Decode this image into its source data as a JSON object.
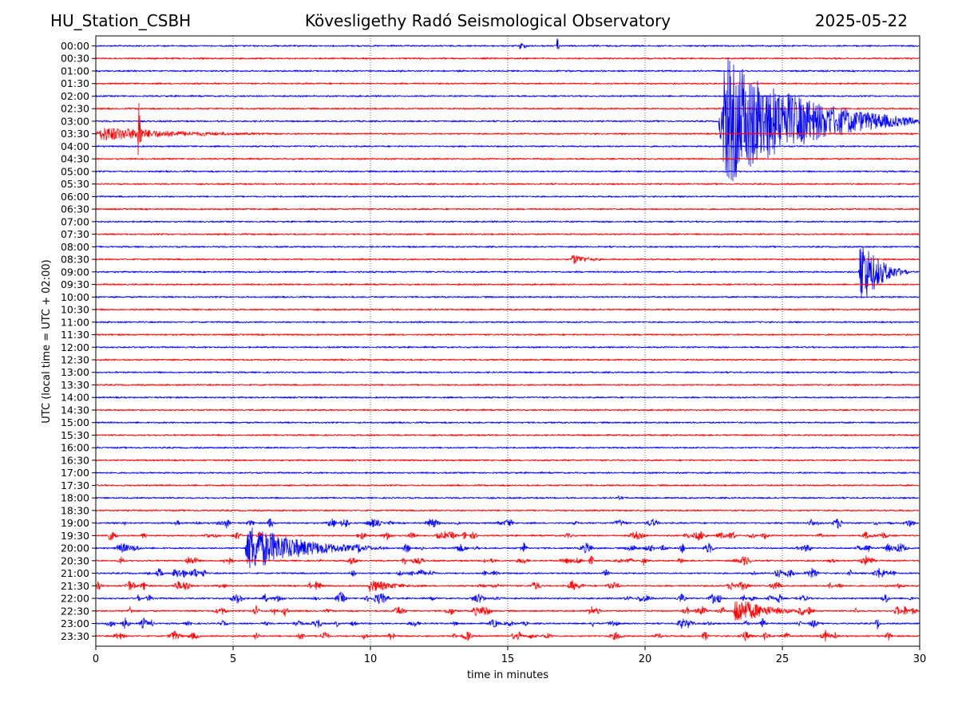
{
  "header": {
    "station": "HU_Station_CSBH",
    "observatory": "Kövesligethy Radó Seismological Observatory",
    "date": "2025-05-22"
  },
  "chart_data": {
    "type": "line",
    "subtype": "helicorder",
    "xlabel": "time in minutes",
    "ylabel": "UTC (local time = UTC + 02:00)",
    "xlim": [
      0,
      30
    ],
    "x_ticks": [
      0,
      5,
      10,
      15,
      20,
      25,
      30
    ],
    "x_grid": "dotted",
    "trace_colors": [
      "#0000ff",
      "#ff0000"
    ],
    "rows": [
      "00:00",
      "00:30",
      "01:00",
      "01:30",
      "02:00",
      "02:30",
      "03:00",
      "03:30",
      "04:00",
      "04:30",
      "05:00",
      "05:30",
      "06:00",
      "06:30",
      "07:00",
      "07:30",
      "08:00",
      "08:30",
      "09:00",
      "09:30",
      "10:00",
      "10:30",
      "11:00",
      "11:30",
      "12:00",
      "12:30",
      "13:00",
      "13:30",
      "14:00",
      "14:30",
      "15:00",
      "15:30",
      "16:00",
      "16:30",
      "17:00",
      "17:30",
      "18:00",
      "18:30",
      "19:00",
      "19:30",
      "20:00",
      "20:30",
      "21:00",
      "21:30",
      "22:00",
      "22:30",
      "23:00",
      "23:30"
    ],
    "events": [
      {
        "row": "00:00",
        "start_min": 15.4,
        "duration_min": 0.6,
        "amplitude": 0.35
      },
      {
        "row": "00:00",
        "start_min": 16.8,
        "duration_min": 0.1,
        "amplitude": 0.8
      },
      {
        "row": "03:30",
        "start_min": 0.0,
        "duration_min": 7.8,
        "amplitude": 0.55
      },
      {
        "row": "03:30",
        "start_min": 1.55,
        "duration_min": 0.15,
        "amplitude": 4.3
      },
      {
        "row": "03:00",
        "start_min": 22.7,
        "duration_min": 7.3,
        "amplitude": 5.0
      },
      {
        "row": "08:30",
        "start_min": 17.3,
        "duration_min": 1.5,
        "amplitude": 0.45
      },
      {
        "row": "09:00",
        "start_min": 27.8,
        "duration_min": 1.8,
        "amplitude": 2.8
      },
      {
        "row": "09:00",
        "start_min": 27.85,
        "duration_min": 0.1,
        "amplitude": 5.0
      },
      {
        "row": "18:00",
        "start_min": 19.0,
        "duration_min": 0.5,
        "amplitude": 0.2
      },
      {
        "row": "20:00",
        "start_min": 5.45,
        "duration_min": 5.0,
        "amplitude": 1.8
      },
      {
        "row": "21:30",
        "start_min": 9.9,
        "duration_min": 2.4,
        "amplitude": 0.5
      },
      {
        "row": "22:30",
        "start_min": 23.2,
        "duration_min": 2.8,
        "amplitude": 1.1
      },
      {
        "row": "23:30",
        "start_min": 24.3,
        "duration_min": 0.5,
        "amplitude": 0.5
      }
    ],
    "noisy_rows": [
      "19:00",
      "19:30",
      "20:00",
      "20:30",
      "21:00",
      "21:30",
      "22:00",
      "22:30",
      "23:00",
      "23:30"
    ]
  }
}
